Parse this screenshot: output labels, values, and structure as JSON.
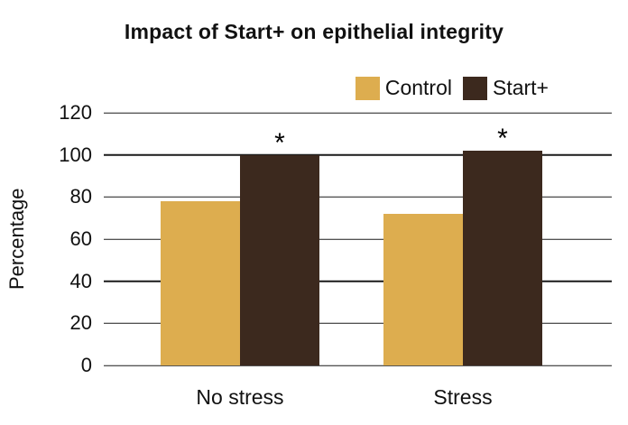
{
  "chart_data": {
    "type": "bar",
    "title": "Impact of Start+ on epithelial integrity",
    "xlabel": "",
    "ylabel": "Percentage",
    "categories": [
      "No stress",
      "Stress"
    ],
    "series": [
      {
        "name": "Control",
        "color": "#DDAD4F",
        "values": [
          78,
          72
        ]
      },
      {
        "name": "Start+",
        "color": "#3C291E",
        "values": [
          100,
          102
        ]
      }
    ],
    "annotations": [
      {
        "series": "Start+",
        "category": "No stress",
        "text": "*"
      },
      {
        "series": "Start+",
        "category": "Stress",
        "text": "*"
      }
    ],
    "ylim": [
      0,
      120
    ],
    "yticks": [
      0,
      20,
      40,
      60,
      80,
      100,
      120
    ],
    "grid": true,
    "legend_position": "top-right",
    "gridline_color": "#1a1a1a",
    "text_color": "#111111",
    "background_color": "#ffffff"
  }
}
